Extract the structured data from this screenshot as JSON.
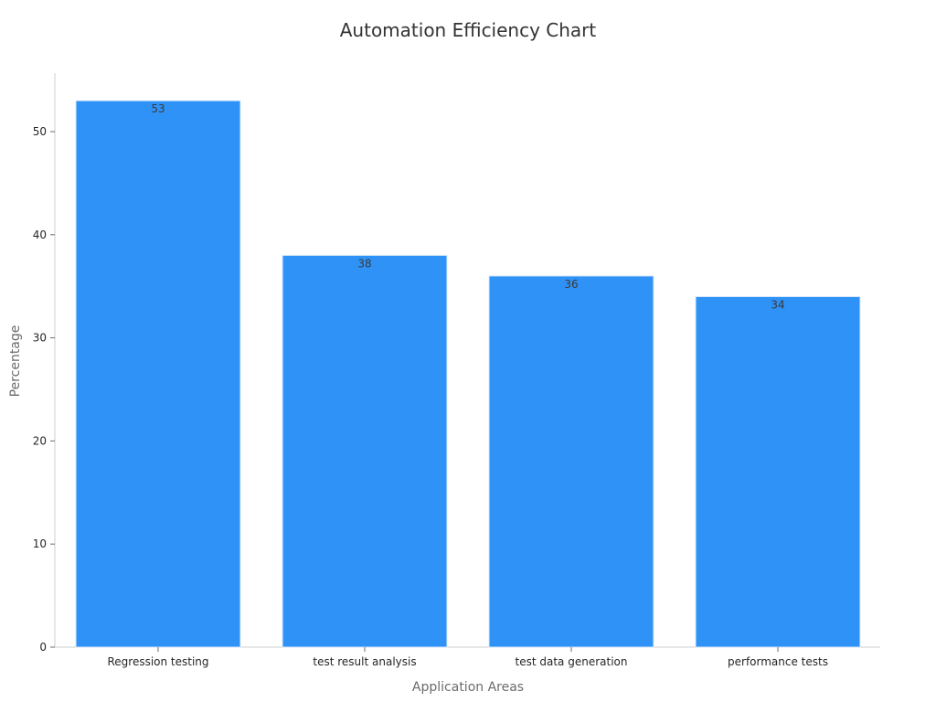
{
  "chart_data": {
    "type": "bar",
    "title": "Automation Efficiency Chart",
    "xlabel": "Application Areas",
    "ylabel": "Percentage",
    "categories": [
      "Regression testing",
      "test result analysis",
      "test data generation",
      "performance tests"
    ],
    "values": [
      53,
      38,
      36,
      34
    ],
    "data_labels": [
      "53",
      "38",
      "36",
      "34"
    ],
    "yticks": [
      0,
      10,
      20,
      30,
      40,
      50
    ],
    "ytick_labels": [
      "0",
      "10",
      "20",
      "30",
      "40",
      "50"
    ],
    "ylim": [
      0,
      55.6
    ],
    "grid": false,
    "legend": "none",
    "bar_color": "#2f92f7",
    "bar_edge_color": "#dce9f9",
    "axis_color": "#cfcfcf",
    "title_color": "#333333",
    "label_color": "#6b6b6b"
  }
}
